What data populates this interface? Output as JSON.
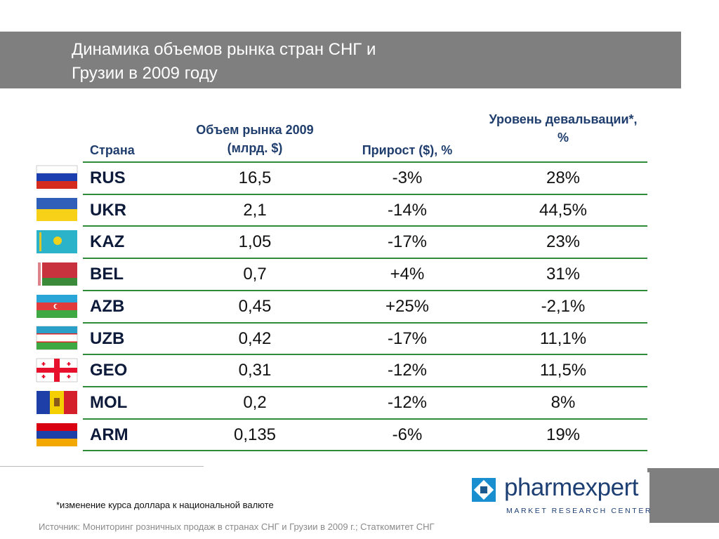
{
  "header": {
    "title_lines": [
      "Динамика объемов рынка стран СНГ и",
      "Грузии в 2009 году"
    ]
  },
  "table": {
    "columns": [
      "Страна",
      "Объем рынка 2009 (млрд. $)",
      "Прирост ($), %",
      "Уровень девальвации*, %"
    ],
    "rows": [
      [
        "RUS",
        "16,5",
        "-3%",
        "28%"
      ],
      [
        "UKR",
        "2,1",
        "-14%",
        "44,5%"
      ],
      [
        "KAZ",
        "1,05",
        "-17%",
        "23%"
      ],
      [
        "BEL",
        "0,7",
        "+4%",
        "31%"
      ],
      [
        "AZB",
        "0,45",
        "+25%",
        "-2,1%"
      ],
      [
        "UZB",
        "0,42",
        "-17%",
        "11,1%"
      ],
      [
        "GEO",
        "0,31",
        "-12%",
        "11,5%"
      ],
      [
        "MOL",
        "0,2",
        "-12%",
        "8%"
      ],
      [
        "ARM",
        "0,135",
        "-6%",
        "19%"
      ]
    ]
  },
  "footnote": "*изменение курса доллара к национальной валюте",
  "source": "Источник: Мониторинг розничных продаж в странах СНГ и Грузии в 2009 г.; Статкомитет СНГ",
  "logo": {
    "name": "pharmexpert",
    "tagline": "MARKET RESEARCH CENTER"
  }
}
